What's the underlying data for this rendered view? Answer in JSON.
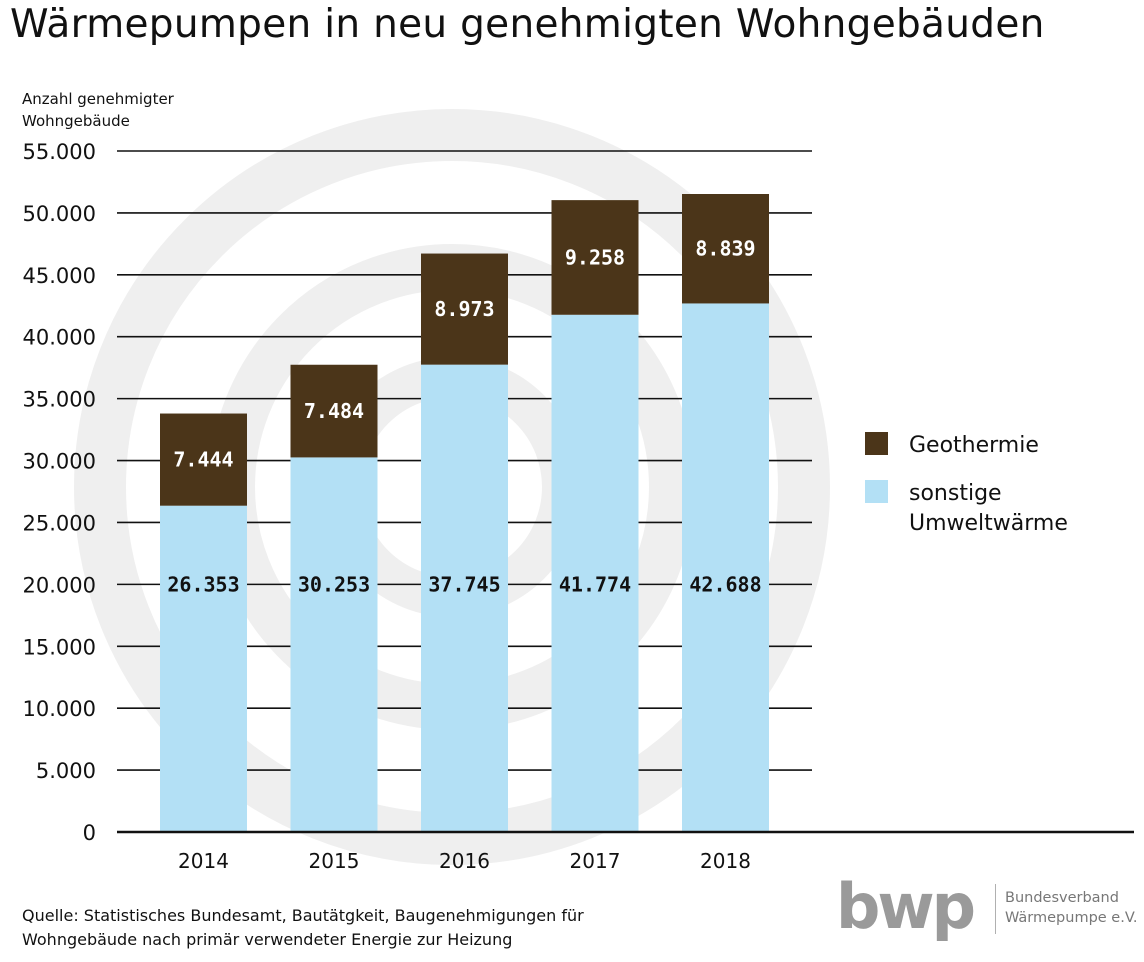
{
  "title": "Wärmepumpen in neu genehmigten Wohngebäuden",
  "source": "Quelle: Statistisches Bundesamt, Bautätgkeit, Baugenehmigungen für Wohngebäude nach primär verwendeter Energie zur Heizung",
  "logo": {
    "mark": "bwp",
    "line1": "Bundesverband",
    "line2": "Wärmepumpe e.V."
  },
  "chart_data": {
    "type": "bar",
    "stacked": true,
    "ylabel": "Anzahl genehmigter Wohngebäude",
    "ylabel_lines": [
      "Anzahl genehmigter",
      "Wohngebäude"
    ],
    "categories": [
      "2014",
      "2015",
      "2016",
      "2017",
      "2018"
    ],
    "ylim": [
      0,
      55000
    ],
    "yticks": [
      0,
      5000,
      10000,
      15000,
      20000,
      25000,
      30000,
      35000,
      40000,
      45000,
      50000,
      55000
    ],
    "ytick_labels": [
      "0",
      "5.000",
      "10.000",
      "15.000",
      "20.000",
      "25.000",
      "30.000",
      "35.000",
      "40.000",
      "45.000",
      "50.000",
      "55.000"
    ],
    "grid": true,
    "legend_position": "right",
    "series": [
      {
        "name": "sonstige Umweltwärme",
        "legend_lines": [
          "sonstige",
          "Umweltwärme"
        ],
        "color": "#b3e0f5",
        "label_color": "#111111",
        "values": [
          26353,
          30253,
          37745,
          41774,
          42688
        ],
        "labels": [
          "26.353",
          "30.253",
          "37.745",
          "41.774",
          "42.688"
        ]
      },
      {
        "name": "Geothermie",
        "legend_lines": [
          "Geothermie"
        ],
        "color": "#4b3519",
        "label_color": "#ffffff",
        "values": [
          7444,
          7484,
          8973,
          9258,
          8839
        ],
        "labels": [
          "7.444",
          "7.484",
          "8.973",
          "9.258",
          "8.839"
        ]
      }
    ]
  }
}
